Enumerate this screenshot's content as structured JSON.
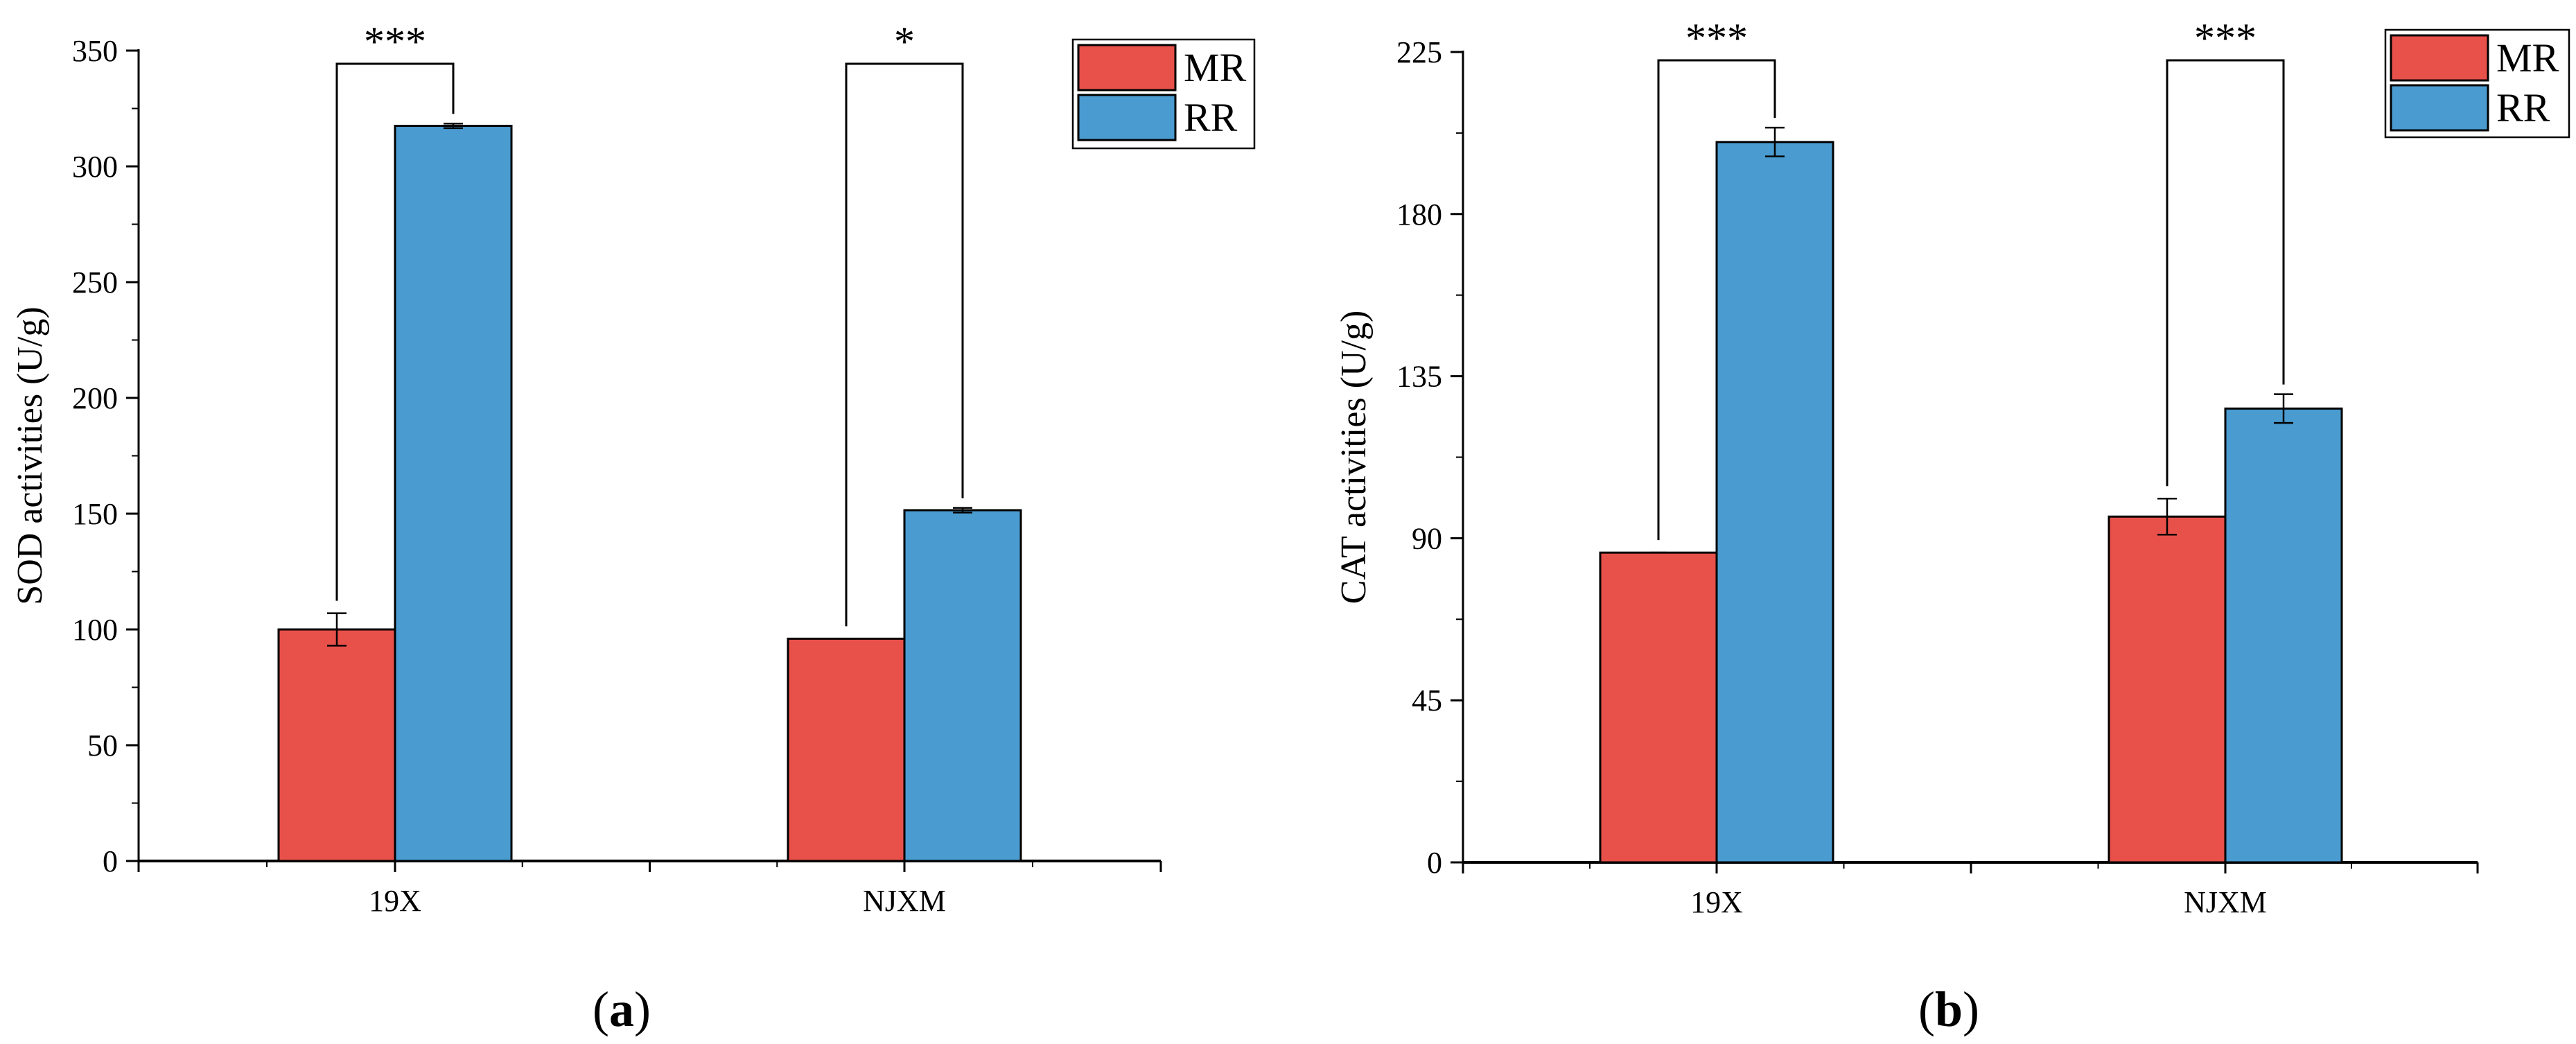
{
  "colors": {
    "MR": "#e8504a",
    "RR": "#4a9bd0"
  },
  "chart_data": [
    {
      "type": "bar",
      "panel_label": "a",
      "title": "",
      "xlabel": "",
      "ylabel": "SOD activities (U/g)",
      "ylim": [
        0,
        350
      ],
      "yticks": [
        0,
        50,
        100,
        150,
        200,
        250,
        300,
        350
      ],
      "categories": [
        "19X",
        "NJXM"
      ],
      "series": [
        {
          "name": "MR",
          "values": [
            100,
            96
          ],
          "errors": [
            7,
            0
          ]
        },
        {
          "name": "RR",
          "values": [
            317.5,
            151.5
          ],
          "errors": [
            1,
            1
          ]
        }
      ],
      "significance": [
        "***",
        "*"
      ],
      "legend": "top-right"
    },
    {
      "type": "bar",
      "panel_label": "b",
      "title": "",
      "xlabel": "",
      "ylabel": "CAT activities (U/g)",
      "ylim": [
        0,
        225
      ],
      "yticks": [
        0,
        45,
        90,
        135,
        180,
        225
      ],
      "categories": [
        "19X",
        "NJXM"
      ],
      "series": [
        {
          "name": "MR",
          "values": [
            86,
            96
          ],
          "errors": [
            0,
            5
          ]
        },
        {
          "name": "RR",
          "values": [
            200,
            126
          ],
          "errors": [
            4,
            4
          ]
        }
      ],
      "significance": [
        "***",
        "***"
      ],
      "legend": "top-right"
    }
  ]
}
